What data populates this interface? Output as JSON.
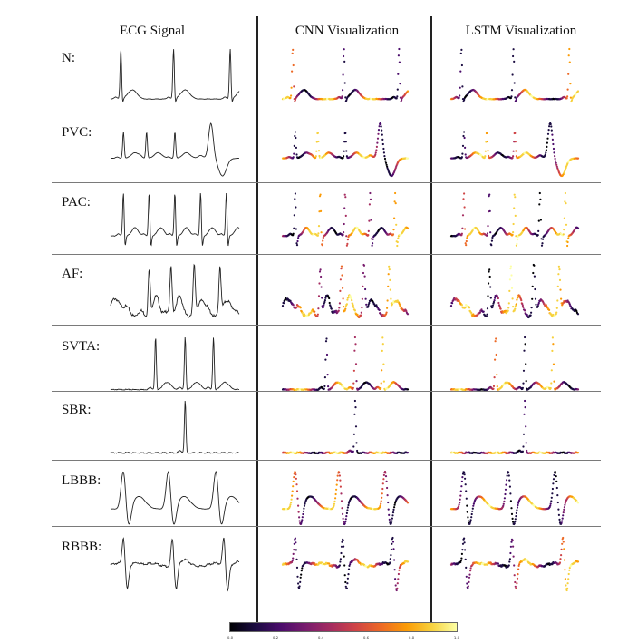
{
  "headers": {
    "ecg": "ECG Signal",
    "cnn": "CNN Visualization",
    "lstm": "LSTM Visualization"
  },
  "rows": [
    {
      "label": "N:",
      "signal": "n"
    },
    {
      "label": "PVC:",
      "signal": "pvc"
    },
    {
      "label": "PAC:",
      "signal": "pac"
    },
    {
      "label": "AF:",
      "signal": "af"
    },
    {
      "label": "SVTA:",
      "signal": "svta"
    },
    {
      "label": "SBR:",
      "signal": "sbr"
    },
    {
      "label": "LBBB:",
      "signal": "lbbb"
    },
    {
      "label": "RBBB:",
      "signal": "rbbb"
    }
  ],
  "colorbar": {
    "colormap": "inferno",
    "ticks": [
      "0.0",
      "0.2",
      "0.4",
      "0.6",
      "0.8",
      "1.0"
    ]
  },
  "colors": {
    "ecg_trace": "#222222",
    "grid_rule": "#7a7a7a"
  }
}
